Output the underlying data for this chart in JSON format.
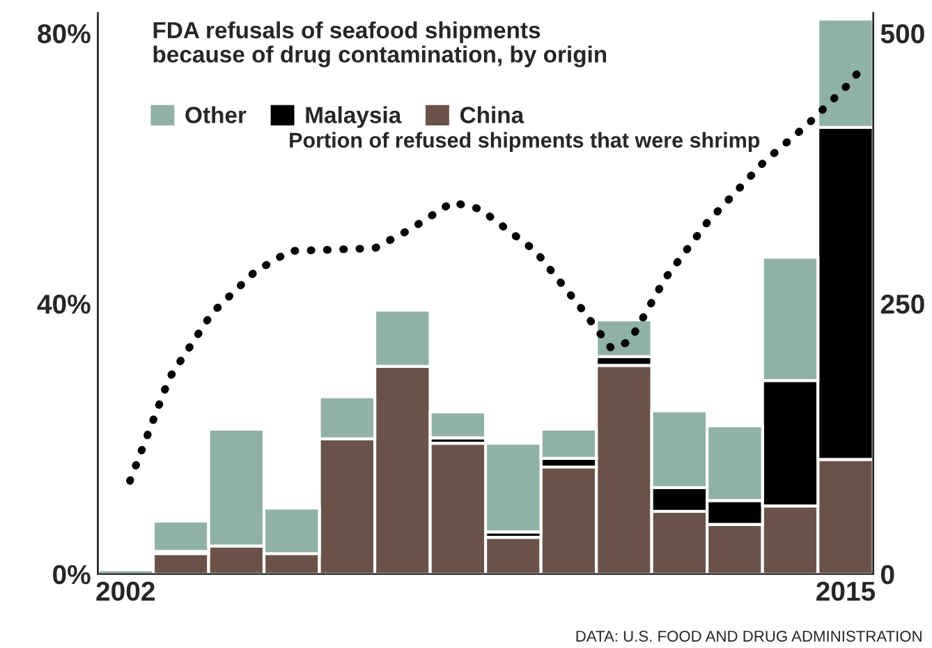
{
  "chart_data": {
    "type": "bar",
    "stacked": true,
    "title": "FDA refusals of seafood shipments\nbecause of drug contamination, by origin",
    "x": [
      2002,
      2003,
      2004,
      2005,
      2006,
      2007,
      2008,
      2009,
      2010,
      2011,
      2012,
      2013,
      2014,
      2015
    ],
    "xlim": [
      2001.5,
      2015.5
    ],
    "xticks": [
      2002,
      2015
    ],
    "ylim": [
      0,
      83
    ],
    "yticks": [
      {
        "value": 0,
        "label": "0%"
      },
      {
        "value": 40,
        "label": "40%"
      },
      {
        "value": 80,
        "label": "80%"
      }
    ],
    "y2lim": [
      0,
      518.75
    ],
    "y2ticks": [
      0,
      250,
      500
    ],
    "series": [
      {
        "name": "China",
        "color": "#6b5248",
        "axis": "y2",
        "values": [
          0,
          19,
          26,
          19,
          125,
          192,
          121,
          34,
          99,
          193,
          58,
          46,
          63,
          106
        ]
      },
      {
        "name": "Malaysia",
        "color": "#000000",
        "axis": "y2",
        "values": [
          0,
          2,
          0,
          0,
          0,
          0,
          5,
          5,
          8,
          8,
          22,
          22,
          116,
          307
        ]
      },
      {
        "name": "Other",
        "color": "#8fb2a4",
        "axis": "y2",
        "values": [
          4,
          28,
          108,
          42,
          39,
          52,
          24,
          82,
          27,
          34,
          71,
          69,
          114,
          100
        ]
      },
      {
        "type": "line",
        "axis": "y",
        "color": "#000000",
        "line_style": "dotted",
        "marker": "none",
        "x": [
          2002.08,
          2002.79,
          2003.56,
          2004.33,
          2004.97,
          2006.5,
          2007.14,
          2007.9,
          2008.4,
          2009.4,
          2010.2,
          2010.77,
          2011.1,
          2011.74,
          2012.5,
          2013.53,
          2014.3,
          2015.07,
          2015.37
        ],
        "values": [
          13.8,
          29,
          38.6,
          44.7,
          47.8,
          48.2,
          51,
          55,
          54,
          47.8,
          39.6,
          33.4,
          34.4,
          43.7,
          52,
          61,
          66.4,
          72.6,
          75.7
        ]
      }
    ],
    "legend": "top left",
    "annotations": [
      "Portion of refused shipments that were shrimp",
      "DATA: U.S. FOOD AND DRUG ADMINISTRATION"
    ]
  }
}
